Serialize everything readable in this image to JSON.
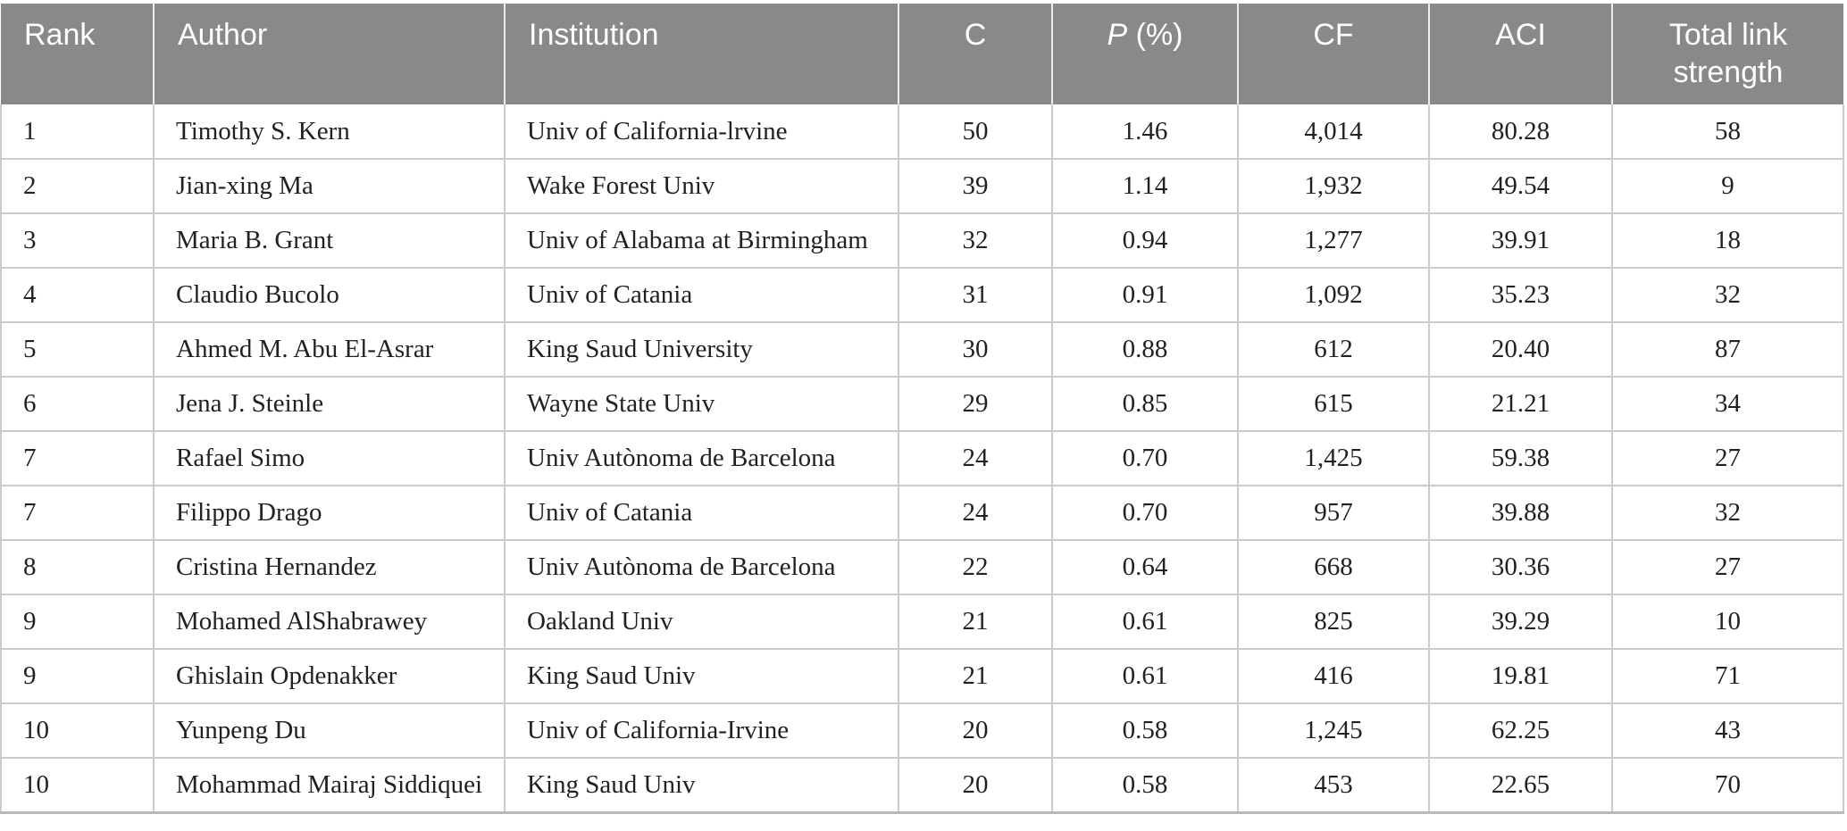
{
  "colors": {
    "header_bg": "#898989",
    "header_text": "#ffffff",
    "body_text": "#212121",
    "grid_line": "#cbcbcb",
    "bottom_line": "#b9b9b9"
  },
  "table": {
    "columns": [
      {
        "key": "rank",
        "label": "Rank"
      },
      {
        "key": "author",
        "label": "Author"
      },
      {
        "key": "institution",
        "label": "Institution"
      },
      {
        "key": "c",
        "label": "C"
      },
      {
        "key": "p-percent",
        "label": "P (%)",
        "label_parts": [
          {
            "text": "P",
            "italic": true
          },
          {
            "text": " (%)",
            "italic": false
          }
        ]
      },
      {
        "key": "cf",
        "label": "CF"
      },
      {
        "key": "aci",
        "label": "ACI"
      },
      {
        "key": "total-link-strength",
        "label": "Total link strength"
      }
    ],
    "rows": [
      [
        "1",
        "Timothy S. Kern",
        "Univ of California-lrvine",
        "50",
        "1.46",
        "4,014",
        "80.28",
        "58"
      ],
      [
        "2",
        "Jian-xing Ma",
        "Wake Forest Univ",
        "39",
        "1.14",
        "1,932",
        "49.54",
        "9"
      ],
      [
        "3",
        "Maria B. Grant",
        "Univ of Alabama at Birmingham",
        "32",
        "0.94",
        "1,277",
        "39.91",
        "18"
      ],
      [
        "4",
        "Claudio Bucolo",
        "Univ of Catania",
        "31",
        "0.91",
        "1,092",
        "35.23",
        "32"
      ],
      [
        "5",
        "Ahmed M. Abu El-Asrar",
        "King Saud University",
        "30",
        "0.88",
        "612",
        "20.40",
        "87"
      ],
      [
        "6",
        "Jena J. Steinle",
        "Wayne State Univ",
        "29",
        "0.85",
        "615",
        "21.21",
        "34"
      ],
      [
        "7",
        "Rafael Simo",
        "Univ Autònoma de Barcelona",
        "24",
        "0.70",
        "1,425",
        "59.38",
        "27"
      ],
      [
        "7",
        "Filippo Drago",
        "Univ of Catania",
        "24",
        "0.70",
        "957",
        "39.88",
        "32"
      ],
      [
        "8",
        "Cristina Hernandez",
        "Univ Autònoma de Barcelona",
        "22",
        "0.64",
        "668",
        "30.36",
        "27"
      ],
      [
        "9",
        "Mohamed AlShabrawey",
        "Oakland Univ",
        "21",
        "0.61",
        "825",
        "39.29",
        "10"
      ],
      [
        "9",
        "Ghislain Opdenakker",
        "King Saud Univ",
        "21",
        "0.61",
        "416",
        "19.81",
        "71"
      ],
      [
        "10",
        "Yunpeng Du",
        "Univ of California-Irvine",
        "20",
        "0.58",
        "1,245",
        "62.25",
        "43"
      ],
      [
        "10",
        "Mohammad Mairaj Siddiquei",
        "King Saud Univ",
        "20",
        "0.58",
        "453",
        "22.65",
        "70"
      ]
    ]
  }
}
